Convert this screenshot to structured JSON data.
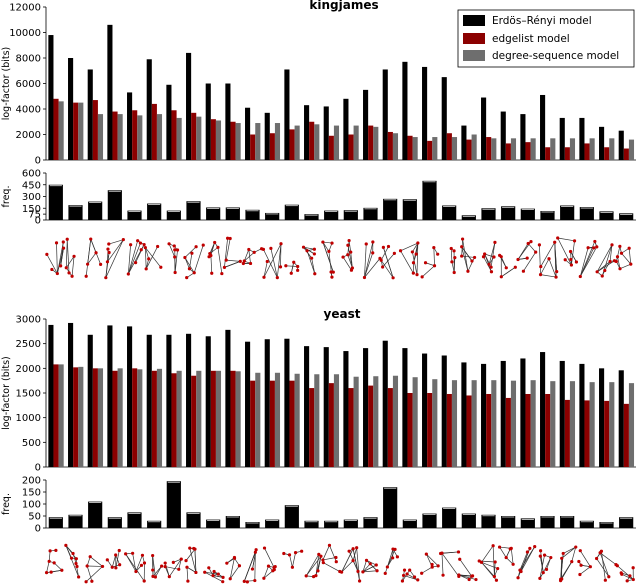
{
  "legend": {
    "items": [
      {
        "label": "Erdös–Rényi model",
        "color": "#000000"
      },
      {
        "label": "edgelist model",
        "color": "#8b0000"
      },
      {
        "label": "degree-sequence model",
        "color": "#6e6e6e"
      }
    ]
  },
  "chart_data": [
    {
      "type": "bar",
      "title": "kingjames",
      "ylabel": "log-factor (bits)",
      "ylim": [
        0,
        12000
      ],
      "yticks": [
        0,
        2000,
        4000,
        6000,
        8000,
        10000,
        12000
      ],
      "legend": "top-right",
      "series": [
        {
          "name": "Erdös–Rényi model",
          "values": [
            9800,
            8000,
            7100,
            10600,
            5300,
            7900,
            5900,
            8400,
            6000,
            6000,
            4100,
            3700,
            7100,
            4300,
            4200,
            4800,
            5500,
            7100,
            7700,
            7300,
            6500,
            2700,
            4900,
            3800,
            3600,
            5100,
            3300,
            3300,
            2600,
            2300
          ]
        },
        {
          "name": "edgelist model",
          "values": [
            4800,
            4500,
            4700,
            3800,
            3900,
            4400,
            3900,
            3700,
            3200,
            3000,
            2000,
            2100,
            2400,
            3000,
            1900,
            2000,
            2700,
            2200,
            1900,
            1500,
            2100,
            1600,
            1800,
            1300,
            1400,
            1000,
            1000,
            1300,
            1000,
            900
          ]
        },
        {
          "name": "degree-sequence model",
          "values": [
            4600,
            4500,
            3600,
            3600,
            3500,
            3600,
            3300,
            3400,
            3100,
            2900,
            2900,
            2900,
            2700,
            2800,
            2700,
            2700,
            2600,
            2100,
            1800,
            1800,
            1800,
            2000,
            1700,
            1700,
            1700,
            1700,
            1700,
            1700,
            1700,
            1600
          ]
        }
      ]
    },
    {
      "type": "bar",
      "ylabel": "freq.",
      "yticks": [
        0,
        75,
        150,
        300,
        450,
        600
      ],
      "ylim": [
        0,
        600
      ],
      "values": [
        450,
        190,
        235,
        380,
        120,
        210,
        120,
        240,
        160,
        160,
        130,
        90,
        195,
        75,
        120,
        125,
        155,
        270,
        265,
        500,
        185,
        60,
        150,
        175,
        145,
        115,
        185,
        165,
        110,
        85
      ]
    },
    {
      "type": "bar",
      "title": "yeast",
      "ylabel": "log-factor (bits)",
      "ylim": [
        0,
        3000
      ],
      "yticks": [
        0,
        500,
        1000,
        1500,
        2000,
        2500,
        3000
      ],
      "series": [
        {
          "name": "Erdös–Rényi model",
          "values": [
            2880,
            2920,
            2680,
            2870,
            2850,
            2680,
            2680,
            2700,
            2650,
            2780,
            2540,
            2590,
            2600,
            2450,
            2430,
            2350,
            2410,
            2560,
            2410,
            2300,
            2260,
            2120,
            2090,
            2150,
            2200,
            2330,
            2150,
            2090,
            2000,
            1960
          ]
        },
        {
          "name": "edgelist model",
          "values": [
            2080,
            2020,
            2000,
            1950,
            2000,
            1950,
            1900,
            1850,
            1950,
            1950,
            1750,
            1750,
            1750,
            1600,
            1700,
            1600,
            1650,
            1600,
            1500,
            1500,
            1480,
            1450,
            1480,
            1400,
            1480,
            1480,
            1360,
            1350,
            1340,
            1280
          ]
        },
        {
          "name": "degree-sequence model",
          "values": [
            2080,
            2030,
            2000,
            2000,
            1980,
            1990,
            1950,
            1950,
            1950,
            1940,
            1910,
            1910,
            1890,
            1880,
            1880,
            1830,
            1840,
            1850,
            1820,
            1780,
            1760,
            1760,
            1760,
            1750,
            1760,
            1740,
            1740,
            1720,
            1720,
            1700
          ]
        }
      ]
    },
    {
      "type": "bar",
      "ylabel": "freq.",
      "yticks": [
        0,
        50,
        100,
        150,
        200
      ],
      "ylim": [
        0,
        200
      ],
      "values": [
        45,
        55,
        110,
        45,
        65,
        30,
        195,
        65,
        35,
        50,
        25,
        35,
        95,
        30,
        30,
        35,
        45,
        170,
        35,
        60,
        85,
        60,
        55,
        50,
        40,
        50,
        50,
        30,
        25,
        45
      ]
    }
  ]
}
